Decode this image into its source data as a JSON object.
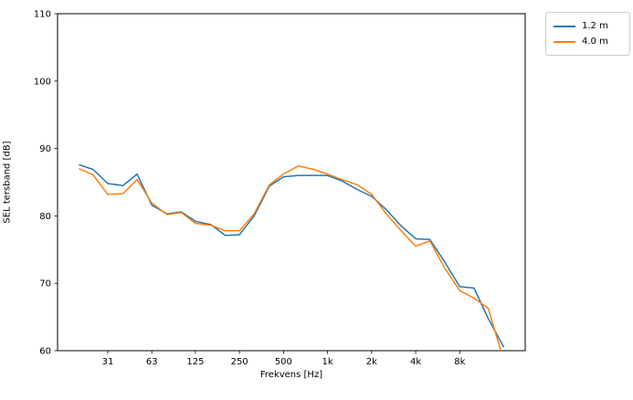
{
  "chart_data": {
    "type": "line",
    "title": "",
    "xlabel": "Frekvens [Hz]",
    "ylabel": "SEL tersband [dB]",
    "x_scale": "log",
    "xlim": [
      14.3,
      22400
    ],
    "ylim": [
      60,
      110
    ],
    "grid": false,
    "legend_position": "outside upper right",
    "xtick_values": [
      31.5,
      63,
      125,
      250,
      500,
      1000,
      2000,
      4000,
      8000
    ],
    "xtick_labels": [
      "31",
      "63",
      "125",
      "250",
      "500",
      "1k",
      "2k",
      "4k",
      "8k"
    ],
    "ytick_values": [
      60,
      70,
      80,
      90,
      100,
      110
    ],
    "ytick_labels": [
      "60",
      "70",
      "80",
      "90",
      "100",
      "110"
    ],
    "x": [
      20,
      25,
      31.5,
      40,
      50,
      63,
      80,
      100,
      125,
      160,
      200,
      250,
      315,
      400,
      500,
      630,
      800,
      1000,
      1250,
      1600,
      2000,
      2500,
      3150,
      4000,
      5000,
      6300,
      8000,
      10000,
      12500,
      16000
    ],
    "series": [
      {
        "name": "1.2 m",
        "color": "#1f77b4",
        "values": [
          87.6,
          86.9,
          84.8,
          84.5,
          86.2,
          81.6,
          80.3,
          80.6,
          79.2,
          78.7,
          77.1,
          77.2,
          80.0,
          84.4,
          85.8,
          86.0,
          86.0,
          86.0,
          85.2,
          83.9,
          82.9,
          81.0,
          78.6,
          76.6,
          76.5,
          73.2,
          69.5,
          69.3,
          64.8,
          60.5
        ]
      },
      {
        "name": "4.0 m",
        "color": "#ff7f0e",
        "values": [
          87.0,
          86.1,
          83.2,
          83.3,
          85.4,
          81.9,
          80.2,
          80.5,
          78.9,
          78.6,
          77.8,
          77.8,
          80.3,
          84.6,
          86.2,
          87.4,
          86.9,
          86.2,
          85.4,
          84.6,
          83.2,
          80.4,
          77.9,
          75.5,
          76.3,
          72.3,
          68.9,
          67.8,
          66.3,
          58.5
        ]
      }
    ]
  }
}
